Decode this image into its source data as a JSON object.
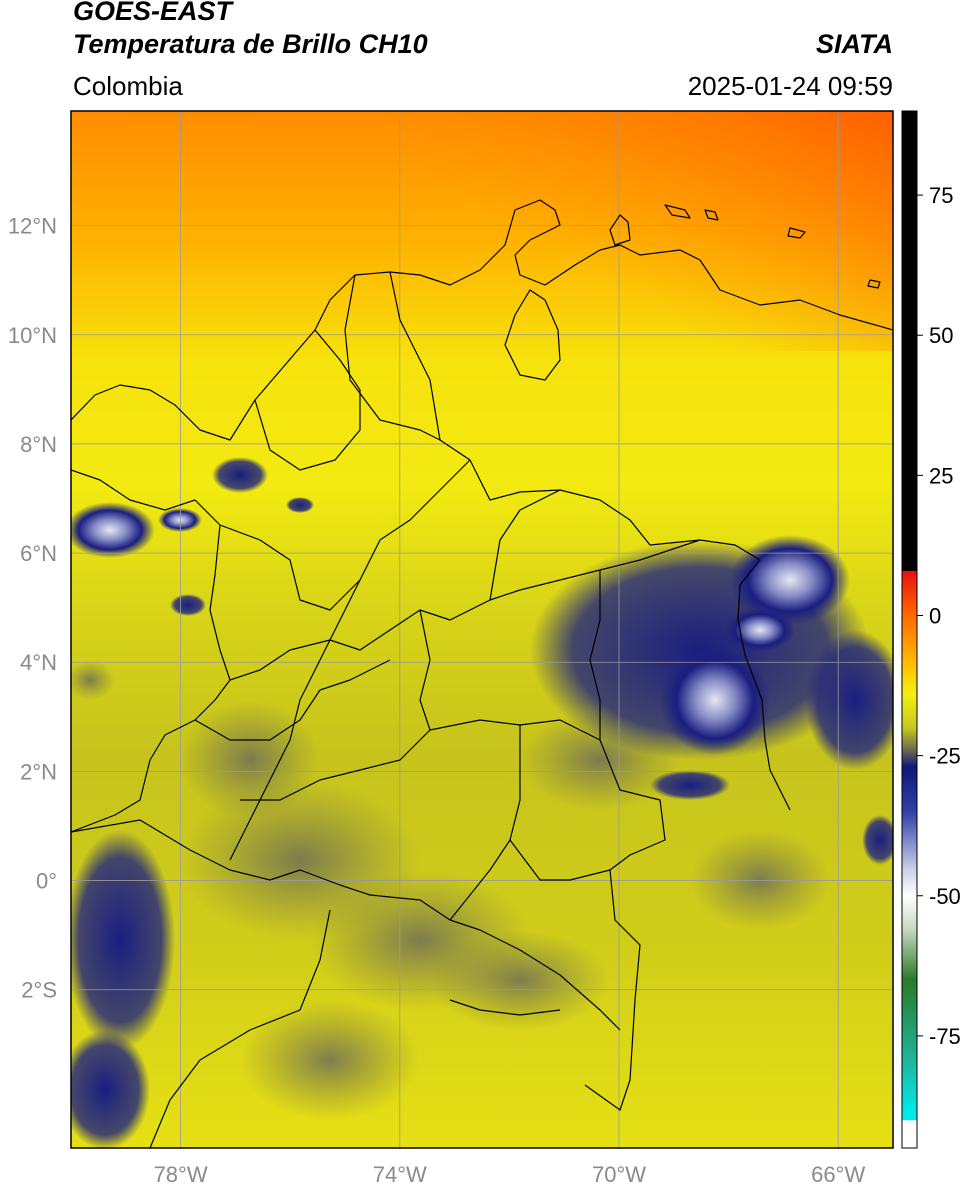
{
  "header": {
    "satellite": "GOES-EAST",
    "product": "Temperatura de Brillo CH10",
    "brand": "SIATA",
    "region": "Colombia",
    "timestamp": "2025-01-24 09:59"
  },
  "map": {
    "lat_range": [
      -4.9,
      14.1
    ],
    "lon_range": [
      -80.0,
      -65.0
    ],
    "lat_ticks": [
      {
        "value": 12,
        "label": "12°N"
      },
      {
        "value": 10,
        "label": "10°N"
      },
      {
        "value": 8,
        "label": "8°N"
      },
      {
        "value": 6,
        "label": "6°N"
      },
      {
        "value": 4,
        "label": "4°N"
      },
      {
        "value": 2,
        "label": "2°N"
      },
      {
        "value": 0,
        "label": "0°"
      },
      {
        "value": -2,
        "label": "2°S"
      }
    ],
    "lon_ticks": [
      {
        "value": -78,
        "label": "78°W"
      },
      {
        "value": -74,
        "label": "74°W"
      },
      {
        "value": -70,
        "label": "70°W"
      },
      {
        "value": -66,
        "label": "66°W"
      }
    ],
    "grid": true,
    "colors": {
      "warm_top": "#ff8c00",
      "yellow": "#f2ea10",
      "olive": "#c6c41c",
      "dark_olive": "#7e7d4a",
      "cloud_navy": "#1a1e80",
      "cloud_white": "#dde1f0",
      "border": "#000000",
      "grid": "#9a9a9a"
    }
  },
  "colorbar": {
    "range": [
      -95,
      90
    ],
    "ticks": [
      {
        "value": 75,
        "label": "75"
      },
      {
        "value": 50,
        "label": "50"
      },
      {
        "value": 25,
        "label": "25"
      },
      {
        "value": 0,
        "label": "0"
      },
      {
        "value": -25,
        "label": "-25"
      },
      {
        "value": -50,
        "label": "-50"
      },
      {
        "value": -75,
        "label": "-75"
      }
    ],
    "stops": [
      {
        "value": 90,
        "color": "#000000"
      },
      {
        "value": 8,
        "color": "#000000"
      },
      {
        "value": 7.9,
        "color": "#e81010"
      },
      {
        "value": 0,
        "color": "#ff6a00"
      },
      {
        "value": -8,
        "color": "#ffb800"
      },
      {
        "value": -14,
        "color": "#f4f010"
      },
      {
        "value": -20,
        "color": "#c8c820"
      },
      {
        "value": -24,
        "color": "#6a6a50"
      },
      {
        "value": -27,
        "color": "#101878"
      },
      {
        "value": -35,
        "color": "#3040a8"
      },
      {
        "value": -45,
        "color": "#c8cce8"
      },
      {
        "value": -50,
        "color": "#ffffff"
      },
      {
        "value": -56,
        "color": "#c8d8c0"
      },
      {
        "value": -65,
        "color": "#2a7a2a"
      },
      {
        "value": -80,
        "color": "#20b8a0"
      },
      {
        "value": -88,
        "color": "#00e8e8"
      },
      {
        "value": -90,
        "color": "#00e8e8"
      },
      {
        "value": -90.1,
        "color": "#ffffff"
      },
      {
        "value": -95,
        "color": "#ffffff"
      }
    ]
  }
}
